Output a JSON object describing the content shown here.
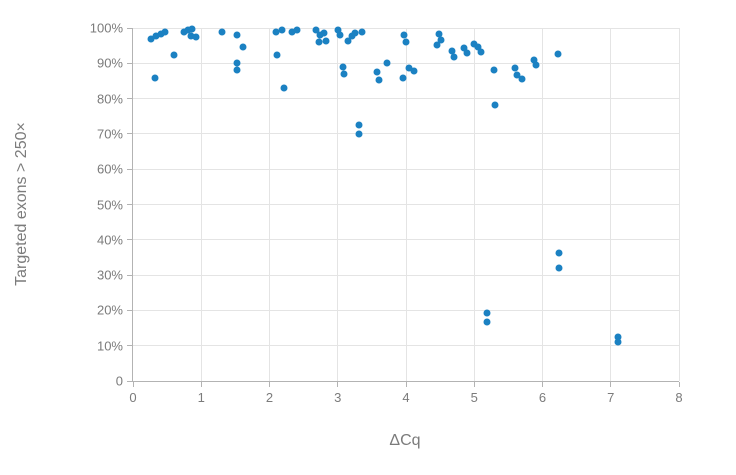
{
  "chart_data": {
    "type": "scatter",
    "title": "",
    "xlabel": "ΔCq",
    "ylabel": "Targeted exons > 250×",
    "xlim": [
      0,
      8
    ],
    "ylim": [
      0,
      100
    ],
    "grid": true,
    "legend": "none",
    "marker_color": "#1b81c2",
    "grid_color": "#e4e4e4",
    "axis_color": "#b3b3b3",
    "label_color": "#7b7b7b",
    "x_ticks": [
      0,
      1,
      2,
      3,
      4,
      5,
      6,
      7,
      8
    ],
    "x_tick_labels": [
      "0",
      "1",
      "2",
      "3",
      "4",
      "5",
      "6",
      "7",
      "8"
    ],
    "y_ticks": [
      0,
      10,
      20,
      30,
      40,
      50,
      60,
      70,
      80,
      90,
      100
    ],
    "y_tick_labels": [
      "0",
      "10%",
      "20%",
      "30%",
      "40%",
      "50%",
      "60%",
      "70%",
      "80%",
      "90%",
      "100%"
    ],
    "points": [
      [
        0.27,
        97.0
      ],
      [
        0.34,
        97.8
      ],
      [
        0.41,
        98.4
      ],
      [
        0.47,
        98.9
      ],
      [
        0.32,
        85.9
      ],
      [
        0.6,
        92.3
      ],
      [
        0.74,
        99.0
      ],
      [
        0.81,
        99.4
      ],
      [
        0.87,
        99.6
      ],
      [
        0.85,
        97.7
      ],
      [
        0.92,
        97.4
      ],
      [
        1.31,
        98.9
      ],
      [
        1.53,
        98.0
      ],
      [
        1.61,
        94.7
      ],
      [
        1.52,
        90.2
      ],
      [
        1.52,
        88.2
      ],
      [
        2.1,
        98.8
      ],
      [
        2.18,
        99.4
      ],
      [
        2.33,
        98.8
      ],
      [
        2.4,
        99.5
      ],
      [
        2.11,
        92.4
      ],
      [
        2.21,
        83.0
      ],
      [
        2.68,
        99.3
      ],
      [
        2.74,
        98.1
      ],
      [
        2.8,
        98.7
      ],
      [
        2.73,
        95.9
      ],
      [
        2.83,
        96.4
      ],
      [
        3.0,
        99.4
      ],
      [
        3.04,
        98.1
      ],
      [
        3.15,
        96.3
      ],
      [
        3.21,
        97.7
      ],
      [
        3.25,
        98.6
      ],
      [
        3.35,
        99.0
      ],
      [
        3.08,
        88.9
      ],
      [
        3.09,
        87.0
      ],
      [
        3.31,
        72.6
      ],
      [
        3.31,
        70.0
      ],
      [
        3.57,
        87.6
      ],
      [
        3.61,
        85.3
      ],
      [
        3.72,
        90.0
      ],
      [
        3.97,
        98.1
      ],
      [
        4.0,
        95.9
      ],
      [
        3.96,
        85.8
      ],
      [
        4.05,
        88.7
      ],
      [
        4.11,
        87.7
      ],
      [
        4.46,
        95.2
      ],
      [
        4.49,
        98.2
      ],
      [
        4.52,
        96.6
      ],
      [
        4.67,
        93.5
      ],
      [
        4.7,
        91.8
      ],
      [
        4.85,
        94.2
      ],
      [
        4.89,
        92.9
      ],
      [
        5.0,
        95.4
      ],
      [
        5.06,
        94.6
      ],
      [
        5.1,
        93.2
      ],
      [
        5.29,
        88.0
      ],
      [
        5.31,
        78.2
      ],
      [
        5.19,
        19.2
      ],
      [
        5.19,
        16.8
      ],
      [
        5.6,
        88.8
      ],
      [
        5.62,
        86.6
      ],
      [
        5.7,
        85.5
      ],
      [
        5.88,
        91.0
      ],
      [
        5.9,
        89.4
      ],
      [
        6.23,
        92.7
      ],
      [
        6.24,
        36.3
      ],
      [
        6.24,
        32.0
      ],
      [
        7.1,
        12.4
      ],
      [
        7.1,
        11.0
      ]
    ]
  }
}
